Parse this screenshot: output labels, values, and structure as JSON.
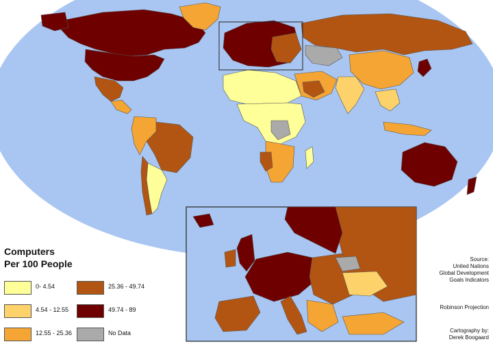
{
  "legend": {
    "title_line1": "Computers",
    "title_line2": "Per 100 People",
    "items": [
      {
        "label": "0- 4.54",
        "color": "#ffff99"
      },
      {
        "label": "4.54 - 12.55",
        "color": "#fdd26a"
      },
      {
        "label": "12.55 - 25.36",
        "color": "#f5a533"
      },
      {
        "label": "25.36 - 49.74",
        "color": "#b35512"
      },
      {
        "label": "49.74 - 89",
        "color": "#6e0000"
      },
      {
        "label": "No Data",
        "color": "#aaaaaa"
      }
    ]
  },
  "source": {
    "line1": "Source:",
    "line2": "United Nations",
    "line3": "Global Development",
    "line4": "Goals Indicators"
  },
  "projection": "Robinson Projection",
  "credit": {
    "line1": "Cartography by:",
    "line2": "Derek Boogaard"
  },
  "colors": {
    "ocean": "#a9c6f2",
    "border": "#555555"
  }
}
